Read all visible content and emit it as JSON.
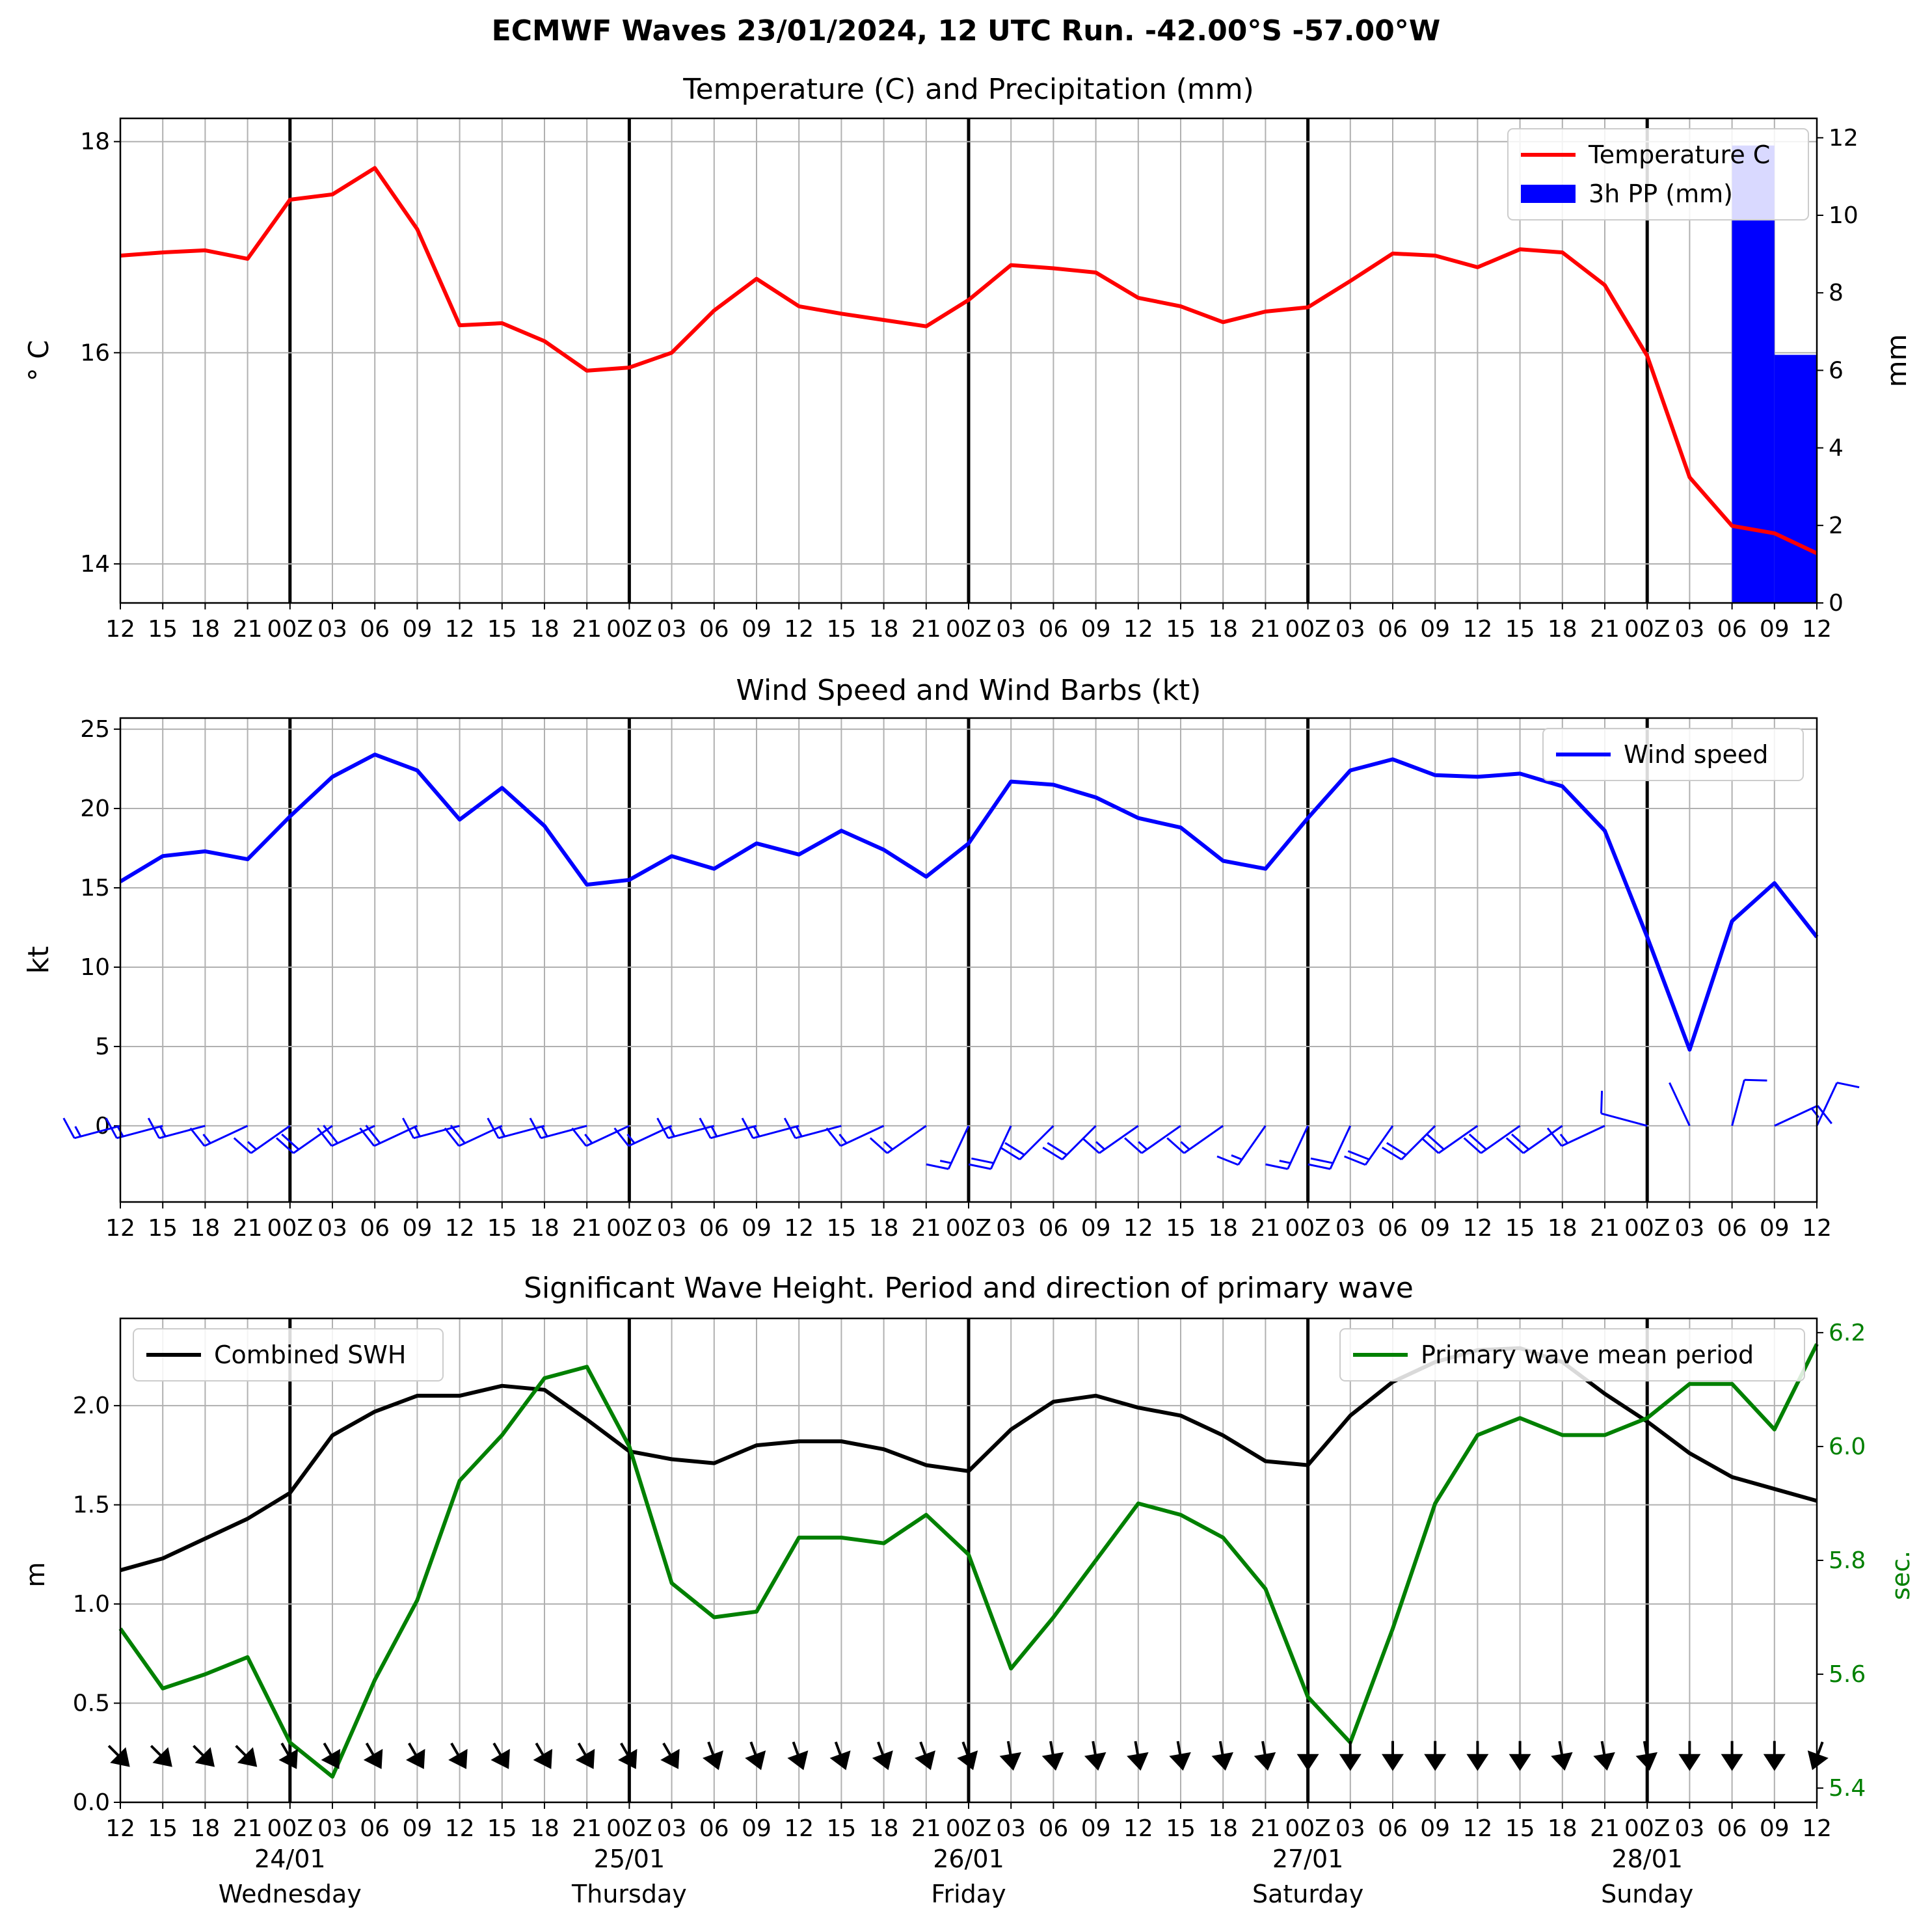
{
  "title": "ECMWF Waves 23/01/2024, 12 UTC Run. -42.00°S -57.00°W",
  "x_tick_labels": [
    "12",
    "15",
    "18",
    "21",
    "00Z",
    "03",
    "06",
    "09",
    "12",
    "15",
    "18",
    "21",
    "00Z",
    "03",
    "06",
    "09",
    "12",
    "15",
    "18",
    "21",
    "00Z",
    "03",
    "06",
    "09",
    "12",
    "15",
    "18",
    "21",
    "00Z",
    "03",
    "06",
    "09",
    "12",
    "15",
    "18",
    "21",
    "00Z",
    "03",
    "06",
    "09",
    "12"
  ],
  "bottom_day_labels": [
    {
      "date": "24/01",
      "day": "Wednesday"
    },
    {
      "date": "25/01",
      "day": "Thursday"
    },
    {
      "date": "26/01",
      "day": "Friday"
    },
    {
      "date": "27/01",
      "day": "Saturday"
    },
    {
      "date": "28/01",
      "day": "Sunday"
    }
  ],
  "colors": {
    "temperature": "#ff0000",
    "precip": "#0000ff",
    "wind": "#0000ff",
    "swh": "#000000",
    "period": "#008000",
    "grid": "#b0b0b0"
  },
  "chart_data": [
    {
      "type": "line",
      "title": "Temperature (C) and Precipitation (mm)",
      "ylabel": "$^\\circ$C",
      "ylabel_display": "° C",
      "y2label": "mm",
      "ylim": [
        13.63,
        18.22
      ],
      "y_ticks": [
        "14",
        "16",
        "18"
      ],
      "y2lim": [
        0,
        12.5
      ],
      "y2_ticks": [
        "0",
        "2",
        "4",
        "6",
        "8",
        "10",
        "12"
      ],
      "x": [
        "23/01 12",
        "23/01 15",
        "23/01 18",
        "23/01 21",
        "24/01 00",
        "24/01 03",
        "24/01 06",
        "24/01 09",
        "24/01 12",
        "24/01 15",
        "24/01 18",
        "24/01 21",
        "25/01 00",
        "25/01 03",
        "25/01 06",
        "25/01 09",
        "25/01 12",
        "25/01 15",
        "25/01 18",
        "25/01 21",
        "26/01 00",
        "26/01 03",
        "26/01 06",
        "26/01 09",
        "26/01 12",
        "26/01 15",
        "26/01 18",
        "26/01 21",
        "27/01 00",
        "27/01 03",
        "27/01 06",
        "27/01 09",
        "27/01 12",
        "27/01 15",
        "27/01 18",
        "27/01 21",
        "28/01 00",
        "28/01 03",
        "28/01 06",
        "28/01 09",
        "28/01 12"
      ],
      "series": [
        {
          "name": "Temperature C",
          "axis": "left",
          "values": [
            16.92,
            16.95,
            16.97,
            16.89,
            17.45,
            17.5,
            17.75,
            17.17,
            16.26,
            16.28,
            16.11,
            15.83,
            15.86,
            16.0,
            16.4,
            16.7,
            16.44,
            16.37,
            16.31,
            16.25,
            16.5,
            16.83,
            16.8,
            16.76,
            16.52,
            16.44,
            16.29,
            16.39,
            16.43,
            16.68,
            16.94,
            16.92,
            16.81,
            16.98,
            16.95,
            16.64,
            15.97,
            14.82,
            14.36,
            14.29,
            14.1
          ]
        },
        {
          "name": "3h PP (mm)",
          "axis": "right",
          "kind": "bar",
          "bars": [
            {
              "from": "28/01 06",
              "to": "28/01 09",
              "value": 11.8
            },
            {
              "from": "28/01 09",
              "to": "28/01 12",
              "value": 6.4
            }
          ]
        }
      ],
      "legend": "top-right",
      "grid": true
    },
    {
      "type": "line",
      "title": "Wind Speed and Wind Barbs (kt)",
      "ylabel": "kt",
      "ylim": [
        -4.8,
        25.7
      ],
      "y_ticks": [
        "0",
        "5",
        "10",
        "15",
        "20",
        "25"
      ],
      "series": [
        {
          "name": "Wind speed",
          "values": [
            15.4,
            17.0,
            17.3,
            16.8,
            19.5,
            22.0,
            23.4,
            22.4,
            19.3,
            21.3,
            18.9,
            15.2,
            15.5,
            17.0,
            16.2,
            17.8,
            17.1,
            18.6,
            17.4,
            15.7,
            17.8,
            21.7,
            21.5,
            20.7,
            19.4,
            18.8,
            16.7,
            16.2,
            19.4,
            22.4,
            23.1,
            22.1,
            22.0,
            22.2,
            21.4,
            18.6,
            11.9,
            4.8,
            12.9,
            15.3,
            11.9
          ]
        }
      ],
      "barb_dir_deg": [
        300,
        300,
        300,
        290,
        280,
        280,
        290,
        290,
        300,
        290,
        300,
        300,
        290,
        290,
        300,
        300,
        300,
        300,
        290,
        280,
        250,
        250,
        270,
        270,
        280,
        280,
        280,
        260,
        250,
        250,
        260,
        270,
        280,
        280,
        280,
        290,
        330,
        20,
        60,
        110,
        70
      ],
      "legend": "top-right",
      "grid": true
    },
    {
      "type": "line",
      "title": "Significant Wave Height. Period and direction of primary wave",
      "ylabel": "m",
      "y2label": "sec.",
      "ylim": [
        0,
        2.44
      ],
      "y_ticks": [
        "0.0",
        "0.5",
        "1.0",
        "1.5",
        "2.0"
      ],
      "y2lim": [
        5.375,
        6.225
      ],
      "y2_ticks": [
        "5.4",
        "5.6",
        "5.8",
        "6.0",
        "6.2"
      ],
      "series": [
        {
          "name": "Combined SWH",
          "axis": "left",
          "values": [
            1.17,
            1.23,
            1.33,
            1.43,
            1.56,
            1.85,
            1.97,
            2.05,
            2.05,
            2.1,
            2.08,
            1.93,
            1.77,
            1.73,
            1.71,
            1.8,
            1.82,
            1.82,
            1.78,
            1.7,
            1.67,
            1.88,
            2.02,
            2.05,
            1.99,
            1.95,
            1.85,
            1.72,
            1.7,
            1.95,
            2.12,
            2.22,
            2.28,
            2.29,
            2.22,
            2.06,
            1.92,
            1.76,
            1.64,
            1.58,
            1.52
          ]
        },
        {
          "name": "Primary wave mean period",
          "axis": "right",
          "values": [
            5.68,
            5.575,
            5.6,
            5.63,
            5.48,
            5.42,
            5.59,
            5.73,
            5.94,
            6.02,
            6.12,
            6.14,
            6.0,
            5.76,
            5.7,
            5.71,
            5.84,
            5.84,
            5.83,
            5.88,
            5.81,
            5.61,
            5.7,
            5.8,
            5.9,
            5.88,
            5.84,
            5.75,
            5.56,
            5.48,
            5.68,
            5.9,
            6.02,
            6.05,
            6.02,
            6.02,
            6.05,
            6.11,
            6.11,
            6.03,
            6.18
          ]
        }
      ],
      "wave_dir_deg": [
        315,
        315,
        315,
        315,
        330,
        330,
        330,
        330,
        330,
        330,
        330,
        330,
        330,
        330,
        340,
        340,
        340,
        340,
        340,
        340,
        340,
        350,
        350,
        350,
        350,
        350,
        350,
        350,
        0,
        0,
        0,
        0,
        0,
        0,
        350,
        350,
        350,
        0,
        0,
        0,
        20
      ],
      "legends": [
        "top-left",
        "top-right"
      ],
      "grid": true
    }
  ]
}
